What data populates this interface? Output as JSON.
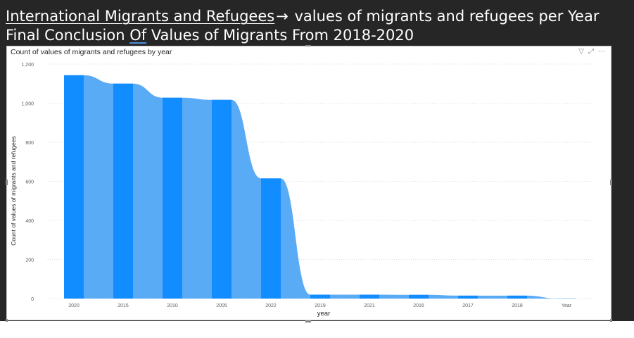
{
  "slide": {
    "title_part1": "International Migrants and Refugees",
    "arrow": "→",
    "title_part2": " values of migrants and refugees per Year",
    "subtitle_part1": "Final Conclusion ",
    "subtitle_of": "Of",
    "subtitle_part2": " Values of Migrants From 2018-2020"
  },
  "visual": {
    "icons": [
      "filter-icon",
      "focus-mode-icon",
      "more-options-icon"
    ],
    "icon_glyphs": {
      "filter": "▽",
      "focus": "⤢",
      "more": "⋯"
    }
  },
  "chart_data": {
    "type": "area",
    "title": "Count of values of migrants and refugees by year",
    "xlabel": "year",
    "ylabel": "Count of values of migrants and refugees",
    "categories": [
      "2020",
      "2015",
      "2010",
      "2005",
      "2022",
      "2019",
      "2021",
      "2016",
      "2017",
      "2018",
      "Year"
    ],
    "values": [
      1143,
      1100,
      1028,
      1017,
      615,
      20,
      20,
      19,
      15,
      15,
      1
    ],
    "yticks": [
      0,
      200,
      400,
      600,
      800,
      1000,
      1200
    ],
    "ytick_labels": [
      "0",
      "200",
      "400",
      "600",
      "800",
      "1,000",
      "1,200"
    ],
    "ylim": [
      0,
      1200
    ],
    "grid": true,
    "colors": {
      "area": "#5aabf6",
      "bar": "#118dff",
      "grid": "#e1dfdd",
      "axis_text": "#605e5c"
    }
  }
}
